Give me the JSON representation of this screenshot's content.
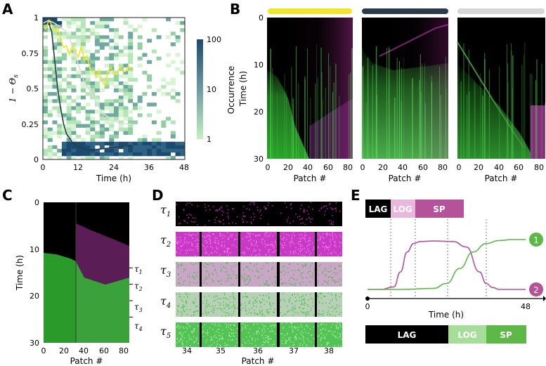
{
  "panels": {
    "A": {
      "letter": "A",
      "ylabel": "1 − Θ",
      "ylabel_sub": "s",
      "xlabel": "Time (h)",
      "xticks": [
        "0",
        "12",
        "24",
        "36",
        "48"
      ],
      "yticks": [
        "0",
        "0.25",
        "0.5",
        "0.75",
        "1"
      ],
      "colorbar_label": "Occurrence",
      "colorbar_ticks": [
        "100",
        "10",
        "1"
      ]
    },
    "B": {
      "letter": "B",
      "ylabel": "Time (h)",
      "xlabel": "Patch #",
      "yticks": [
        "0",
        "10",
        "20",
        "30"
      ],
      "xticks": [
        "0",
        "20",
        "40",
        "60",
        "80"
      ],
      "bar_colors": [
        "#f0e62c",
        "#2b3b4c",
        "#d6d6d6"
      ]
    },
    "C": {
      "letter": "C",
      "ylabel": "Time (h)",
      "xlabel": "Patch #",
      "yticks": [
        "0",
        "10",
        "20",
        "30"
      ],
      "xticks": [
        "0",
        "20",
        "40",
        "60",
        "80"
      ],
      "tau_labels": [
        "τ",
        "τ",
        "τ",
        "τ"
      ],
      "tau_subs": [
        "1",
        "2",
        "3",
        "4"
      ]
    },
    "D": {
      "letter": "D",
      "row_labels": [
        "τ",
        "τ",
        "τ",
        "τ",
        "τ"
      ],
      "row_subs": [
        "1",
        "2",
        "3",
        "4",
        "5"
      ],
      "xticks": [
        "34",
        "35",
        "36",
        "37",
        "38"
      ],
      "xlabel": "Patch #"
    },
    "E": {
      "letter": "E",
      "top_phases": [
        "LAG",
        "LOG",
        "SP"
      ],
      "bottom_phases": [
        "LAG",
        "LOG",
        "SP"
      ],
      "x_start": "0",
      "x_end": "48",
      "xlabel": "Time (h)",
      "marker_1": "1",
      "marker_2": "2",
      "magenta": "#b5529a",
      "green": "#5cb946"
    }
  },
  "chart_data": [
    {
      "type": "heatmap",
      "panel": "A",
      "xlabel": "Time (h)",
      "ylabel": "1 − Θs",
      "xlim": [
        0,
        48
      ],
      "ylim": [
        0,
        1
      ],
      "colorbar": {
        "label": "Occurrence",
        "scale": "log",
        "range": [
          1,
          100
        ]
      },
      "series": [
        {
          "name": "dark",
          "color": "#2b3b4c",
          "x": [
            0,
            2,
            3,
            4,
            5,
            6,
            7,
            8,
            10,
            12,
            15,
            18,
            22,
            26,
            30
          ],
          "y": [
            0.96,
            0.96,
            0.9,
            0.7,
            0.5,
            0.36,
            0.25,
            0.18,
            0.12,
            0.09,
            0.07,
            0.07,
            0.08,
            0.09,
            0.1
          ]
        },
        {
          "name": "white",
          "color": "#dcdcdc",
          "x": [
            0,
            2,
            4,
            6,
            8,
            10,
            12,
            14,
            16,
            18,
            20,
            22,
            24,
            26,
            28,
            30
          ],
          "y": [
            0.96,
            0.98,
            0.96,
            0.93,
            0.9,
            0.8,
            0.67,
            0.55,
            0.48,
            0.4,
            0.33,
            0.3,
            0.27,
            0.26,
            0.25,
            0.25
          ]
        },
        {
          "name": "yellow",
          "color": "#f0e62c",
          "x": [
            0,
            1,
            2,
            3,
            4,
            5,
            6,
            7,
            8,
            9,
            10,
            11,
            12,
            13,
            14,
            15,
            16,
            17,
            18,
            19,
            20,
            21,
            22,
            23,
            24,
            25,
            26,
            27,
            28,
            29,
            30
          ],
          "y": [
            0.94,
            0.92,
            0.98,
            0.95,
            0.9,
            0.93,
            0.85,
            0.79,
            0.8,
            0.74,
            0.8,
            0.76,
            0.72,
            0.8,
            0.7,
            0.73,
            0.63,
            0.62,
            0.58,
            0.63,
            0.55,
            0.52,
            0.62,
            0.65,
            0.6,
            0.6,
            0.65,
            0.62,
            0.62,
            0.66,
            0.62
          ]
        }
      ]
    },
    {
      "type": "heatmap",
      "panel": "B",
      "xlabel": "Patch #",
      "ylabel": "Time (h)",
      "xlim": [
        0,
        85
      ],
      "ylim": [
        0,
        30
      ],
      "subplots": 3
    },
    {
      "type": "heatmap",
      "panel": "C",
      "xlabel": "Patch #",
      "ylabel": "Time (h)",
      "xlim": [
        0,
        85
      ],
      "ylim": [
        0,
        30
      ],
      "tau_times": [
        14,
        17.5,
        21,
        24.5
      ]
    },
    {
      "type": "line",
      "panel": "E",
      "xlabel": "Time (h)",
      "xlim": [
        0,
        48
      ],
      "series": [
        {
          "name": "1",
          "color": "#5cb946",
          "x": [
            0,
            10,
            20,
            24,
            28,
            32,
            36,
            40,
            44,
            48
          ],
          "y": [
            0,
            0,
            0.02,
            0.12,
            0.42,
            0.75,
            0.92,
            0.98,
            1,
            1
          ]
        },
        {
          "name": "2",
          "color": "#b5529a",
          "x": [
            0,
            4,
            8,
            10,
            12,
            14,
            16,
            20,
            26,
            30,
            34,
            36,
            38,
            40,
            48
          ],
          "y": [
            0,
            0,
            0.05,
            0.35,
            0.75,
            0.92,
            0.96,
            0.97,
            0.96,
            0.85,
            0.35,
            0.12,
            0.04,
            0,
            0
          ]
        }
      ]
    }
  ]
}
